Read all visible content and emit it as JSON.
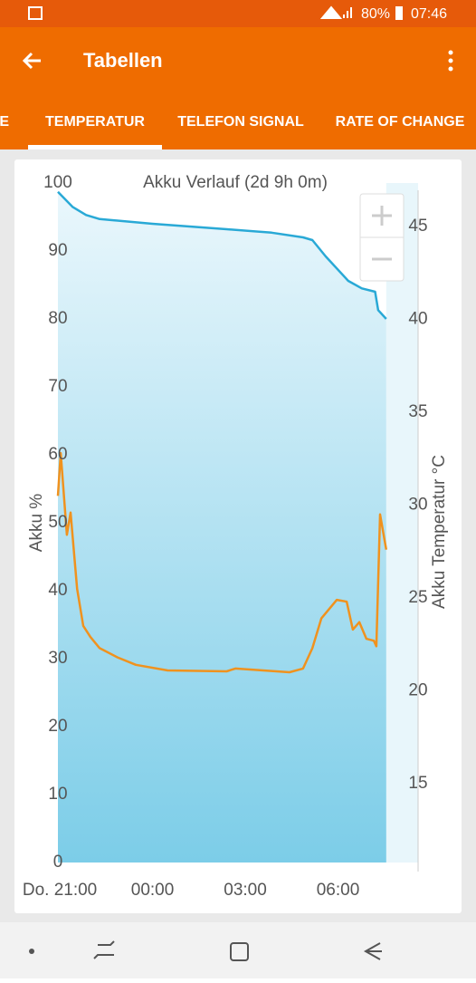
{
  "status_bar": {
    "battery": "80%",
    "time": "07:46"
  },
  "app_bar": {
    "title": "Tabellen"
  },
  "tabs": [
    "E",
    "TEMPERATUR",
    "TELEFON SIGNAL",
    "RATE OF CHANGE"
  ],
  "chart_data": {
    "type": "line",
    "title": "Akku Verlauf (2d 9h 0m)",
    "y_label": "Akku %",
    "y2_label": "Akku Temperatur °C",
    "xlim": [
      20.94,
      32.59
    ],
    "xticks": [
      {
        "value": 21,
        "label": "Do. 21:00"
      },
      {
        "value": 24,
        "label": "00:00"
      },
      {
        "value": 27,
        "label": "03:00"
      },
      {
        "value": 30,
        "label": "06:00"
      }
    ],
    "ylim": [
      0,
      100
    ],
    "yticks": [
      0,
      10,
      20,
      30,
      40,
      50,
      60,
      70,
      80,
      90,
      100
    ],
    "y2lim": [
      10.76,
      47.34
    ],
    "y2ticks": [
      15,
      20,
      25,
      30,
      35,
      40,
      45
    ],
    "grid": false,
    "series": [
      {
        "color": "#29a9d6",
        "area": true,
        "x": [
          20.94,
          21.41,
          21.85,
          22.29,
          24,
          26.4,
          27.85,
          28.87,
          29.17,
          29.6,
          30.33,
          30.77,
          31.2,
          31.3,
          31.56
        ],
        "values": [
          98.7,
          96.5,
          95.3,
          94.7,
          94,
          93.2,
          92.7,
          92,
          91.6,
          89.2,
          85.6,
          84.5,
          84,
          81.3,
          80
        ]
      },
      {
        "color": "#f0921e",
        "axis": "y2",
        "x": [
          20.94,
          21.03,
          21.23,
          21.35,
          21.56,
          21.76,
          21.99,
          22.29,
          22.87,
          23.46,
          24.49,
          26.4,
          26.68,
          28.43,
          28.87,
          29.17,
          29.46,
          29.96,
          30.28,
          30.48,
          30.69,
          30.92,
          31.16,
          31.24,
          31.36,
          31.56
        ],
        "values": [
          30.5,
          32.8,
          28.4,
          29.6,
          25.5,
          23.5,
          22.9,
          22.3,
          21.8,
          21.4,
          21.1,
          21.05,
          21.2,
          21.0,
          21.2,
          22.3,
          23.9,
          24.9,
          24.8,
          23.3,
          23.7,
          22.8,
          22.7,
          22.4,
          29.5,
          27.6
        ]
      }
    ]
  }
}
